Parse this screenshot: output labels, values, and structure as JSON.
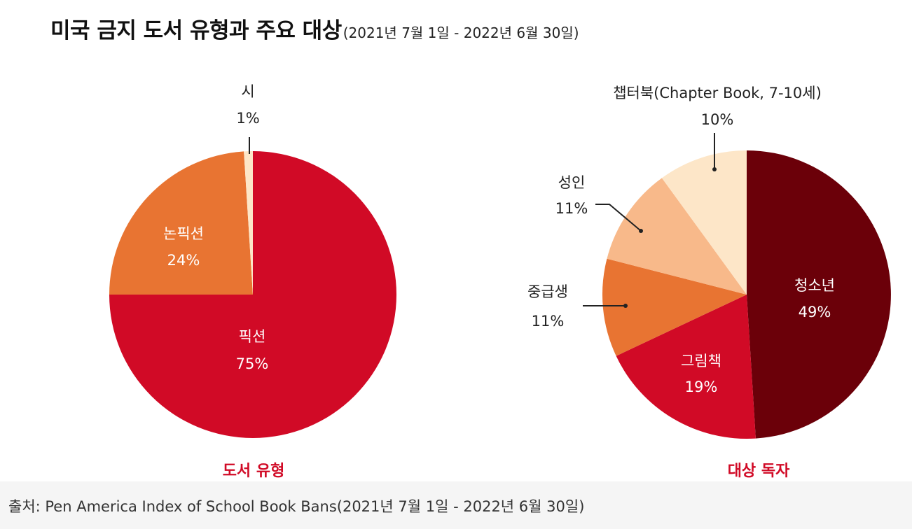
{
  "title": {
    "main": "미국 금지 도서 유형과 주요 대상",
    "sub": "(2021년  7월 1일 - 2022년 6월 30일)"
  },
  "chart_data": [
    {
      "type": "pie",
      "title": "도서 유형",
      "slices": [
        {
          "label": "픽션",
          "value_label": "75%",
          "value": 75,
          "color": "#d10a26"
        },
        {
          "label": "논픽션",
          "value_label": "24%",
          "value": 24,
          "color": "#e87432"
        },
        {
          "label": "시",
          "value_label": "1%",
          "value": 1,
          "color": "#fde6c8"
        }
      ]
    },
    {
      "type": "pie",
      "title": "대상 독자",
      "slices": [
        {
          "label": "청소년",
          "value_label": "49%",
          "value": 49,
          "color": "#6b0009"
        },
        {
          "label": "그림책",
          "value_label": "19%",
          "value": 19,
          "color": "#d10a26"
        },
        {
          "label": "중급생",
          "value_label": "11%",
          "value": 11,
          "color": "#e87432"
        },
        {
          "label": "성인",
          "value_label": "11%",
          "value": 11,
          "color": "#f8b98a"
        },
        {
          "label": "챕터북(Chapter Book, 7-10세)",
          "value_label": "10%",
          "value": 10,
          "color": "#fde6c8"
        }
      ]
    }
  ],
  "footer": {
    "source": "출처: Pen America Index of School Book Bans(2021년  7월 1일 - 2022년 6월 30일)"
  }
}
